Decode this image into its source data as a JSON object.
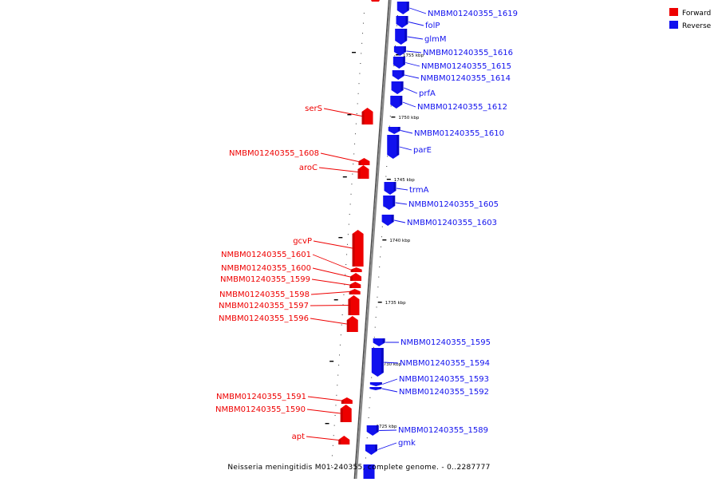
{
  "colors": {
    "forward": "#ee0000",
    "forward_dark": "#a80000",
    "reverse": "#1111ee",
    "reverse_dark": "#0000a0",
    "backbone": "#8a8a8a",
    "backbone_dark": "#4a4a4a"
  },
  "legend": [
    {
      "label": "Forward",
      "strand": "forward"
    },
    {
      "label": "Reverse",
      "strand": "reverse"
    }
  ],
  "caption": "Neisseria meningitidis M01-240355, complete genome. - 0..2287777",
  "scale_labels": [
    "1755 kbp",
    "1750 kbp",
    "1745 kbp",
    "1740 kbp",
    "1735 kbp",
    "1730 kbp",
    "1725 kbp"
  ],
  "genes_forward": [
    {
      "name": "serS"
    },
    {
      "name": "NMBM01240355_1608"
    },
    {
      "name": "aroC"
    },
    {
      "name": "gcvP"
    },
    {
      "name": "NMBM01240355_1601"
    },
    {
      "name": "NMBM01240355_1600"
    },
    {
      "name": "NMBM01240355_1599"
    },
    {
      "name": "NMBM01240355_1598"
    },
    {
      "name": "NMBM01240355_1597"
    },
    {
      "name": "NMBM01240355_1596"
    },
    {
      "name": "NMBM01240355_1591"
    },
    {
      "name": "NMBM01240355_1590"
    },
    {
      "name": "apt"
    }
  ],
  "genes_reverse": [
    {
      "name": "NMBM01240355_1619"
    },
    {
      "name": "folP"
    },
    {
      "name": "glmM"
    },
    {
      "name": "NMBM01240355_1616"
    },
    {
      "name": "NMBM01240355_1615"
    },
    {
      "name": "NMBM01240355_1614"
    },
    {
      "name": "prfA"
    },
    {
      "name": "NMBM01240355_1612"
    },
    {
      "name": "NMBM01240355_1610"
    },
    {
      "name": "parE"
    },
    {
      "name": "trmA"
    },
    {
      "name": "NMBM01240355_1605"
    },
    {
      "name": "NMBM01240355_1603"
    },
    {
      "name": "NMBM01240355_1595"
    },
    {
      "name": "NMBM01240355_1594"
    },
    {
      "name": "NMBM01240355_1593"
    },
    {
      "name": "NMBM01240355_1592"
    },
    {
      "name": "NMBM01240355_1589"
    },
    {
      "name": "gmk"
    }
  ]
}
